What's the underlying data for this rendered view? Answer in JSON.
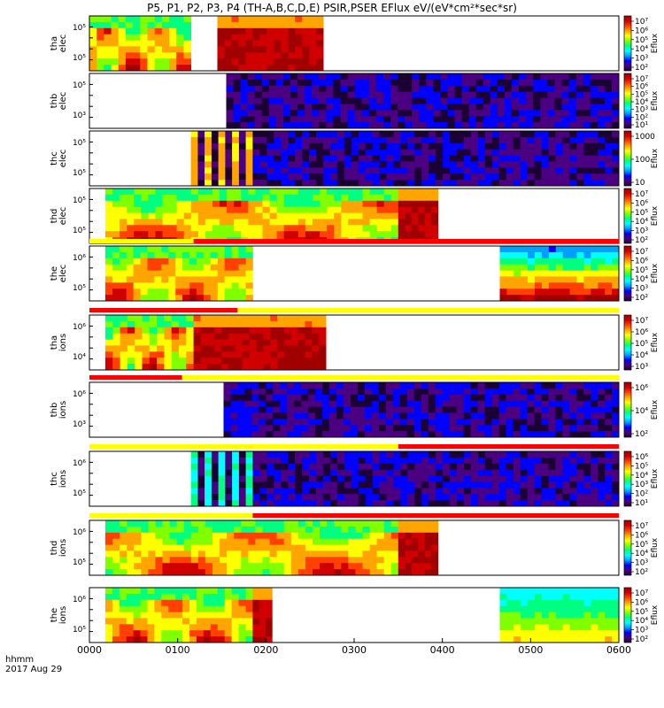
{
  "title": "P5, P1, P2, P3, P4 (TH-A,B,C,D,E) PSIR,PSER EFlux eV/(eV*cm²*sec*sr)",
  "footer": {
    "units": "hhmm",
    "date": "2017 Aug 29"
  },
  "colors": {
    "mode_red": "#ff0000",
    "mode_yellow": "#ffff00",
    "axis": "#000000"
  },
  "chart_data": {
    "type": "heatmap",
    "xlabel": "hhmm",
    "xlim": [
      "0000",
      "0600"
    ],
    "x_ticks": [
      "0000",
      "0100",
      "0200",
      "0300",
      "0400",
      "0500",
      "0600"
    ],
    "panels": [
      {
        "name": "tha elec",
        "label": [
          "tha",
          "elec"
        ],
        "yticks": [
          "10⁵",
          "10⁵"
        ],
        "cbar": [
          "10⁷",
          "10⁶",
          "10⁵",
          "10⁴",
          "10³",
          "10²"
        ],
        "cbar_title": "Eflux",
        "blocks": [
          {
            "x": [
              "0000",
              "0115"
            ],
            "level": "mid"
          },
          {
            "x": [
              "0145",
              "0265"
            ],
            "level": "high"
          }
        ]
      },
      {
        "name": "thb elec",
        "label": [
          "thb",
          "elec"
        ],
        "yticks": [
          "10⁵",
          "10³"
        ],
        "cbar": [
          "10⁷",
          "10⁶",
          "10⁵",
          "10⁴",
          "10³",
          "10²",
          "10¹"
        ],
        "cbar_title": "Eflux",
        "blocks": [
          {
            "x": [
              "0155",
              "0600"
            ],
            "level": "noise"
          }
        ]
      },
      {
        "name": "thc elec",
        "label": [
          "thc",
          "elec"
        ],
        "yticks": [
          "10⁵",
          "10⁵"
        ],
        "cbar": [
          "1000",
          "100",
          "10"
        ],
        "cbar_title": "Eflux",
        "blocks": [
          {
            "x": [
              "0115",
              "0185"
            ],
            "level": "striped"
          },
          {
            "x": [
              "0185",
              "0600"
            ],
            "level": "noise"
          }
        ]
      },
      {
        "name": "thd elec",
        "label": [
          "thd",
          "elec"
        ],
        "yticks": [
          "10⁵",
          "10⁵"
        ],
        "cbar": [
          "10⁷",
          "10⁶",
          "10⁵",
          "10⁴",
          "10³",
          "10²"
        ],
        "cbar_title": "Eflux",
        "blocks": [
          {
            "x": [
              "0018",
              "0350"
            ],
            "level": "mid"
          },
          {
            "x": [
              "0350",
              "0395"
            ],
            "level": "high"
          }
        ]
      },
      {
        "name": "the elec",
        "label": [
          "the",
          "elec"
        ],
        "yticks": [
          "10⁶",
          "10⁵"
        ],
        "cbar": [
          "10⁷",
          "10⁶",
          "10⁵",
          "10⁴",
          "10³",
          "10²"
        ],
        "cbar_title": "Eflux",
        "blocks": [
          {
            "x": [
              "0018",
              "0185"
            ],
            "level": "mid"
          },
          {
            "x": [
              "0465",
              "0600"
            ],
            "level": "gradient"
          }
        ]
      },
      {
        "name": "tha ions",
        "label": [
          "tha",
          "ions"
        ],
        "yticks": [
          "10⁶",
          "10⁴"
        ],
        "cbar": [
          "10⁷",
          "10⁶",
          "10⁵",
          "10⁴",
          "10³"
        ],
        "cbar_title": "Eflux",
        "blocks": [
          {
            "x": [
              "0018",
              "0118"
            ],
            "level": "mid"
          },
          {
            "x": [
              "0118",
              "0268"
            ],
            "level": "high"
          }
        ]
      },
      {
        "name": "thb ions",
        "label": [
          "thb",
          "ions"
        ],
        "yticks": [
          "10⁶",
          "10³"
        ],
        "cbar": [
          "10⁶",
          "10⁴",
          "10²"
        ],
        "cbar_title": "Eflux",
        "blocks": [
          {
            "x": [
              "0152",
              "0600"
            ],
            "level": "noise"
          }
        ]
      },
      {
        "name": "thc ions",
        "label": [
          "thc",
          "ions"
        ],
        "yticks": [
          "10⁶",
          "10⁵"
        ],
        "cbar": [
          "10⁶",
          "10⁵",
          "10⁴",
          "10³",
          "10²",
          "10¹"
        ],
        "cbar_title": "Eflux",
        "blocks": [
          {
            "x": [
              "0115",
              "0185"
            ],
            "level": "striped-cyan"
          },
          {
            "x": [
              "0185",
              "0600"
            ],
            "level": "noise"
          }
        ]
      },
      {
        "name": "thd ions",
        "label": [
          "thd",
          "ions"
        ],
        "yticks": [
          "10⁶",
          "10⁵"
        ],
        "cbar": [
          "10⁷",
          "10⁶",
          "10⁵",
          "10⁴",
          "10³",
          "10²"
        ],
        "cbar_title": "Eflux",
        "blocks": [
          {
            "x": [
              "0018",
              "0350"
            ],
            "level": "mid"
          },
          {
            "x": [
              "0350",
              "0395"
            ],
            "level": "high"
          }
        ]
      },
      {
        "name": "the ions",
        "label": [
          "the",
          "ions"
        ],
        "yticks": [
          "10⁶",
          "10⁵"
        ],
        "cbar": [
          "10⁷",
          "10⁶",
          "10⁵",
          "10⁴",
          "10³",
          "10²"
        ],
        "cbar_title": "Eflux",
        "blocks": [
          {
            "x": [
              "0018",
              "0185"
            ],
            "level": "mid"
          },
          {
            "x": [
              "0185",
              "0207"
            ],
            "level": "high"
          },
          {
            "x": [
              "0465",
              "0600"
            ],
            "level": "gradient-ion"
          }
        ]
      }
    ],
    "mode_bars": [
      {
        "after_panel": 4,
        "segments": [
          {
            "x": [
              "0000",
              "0118"
            ],
            "color": "yellow"
          },
          {
            "x": [
              "0118",
              "0600"
            ],
            "color": "red"
          }
        ]
      },
      {
        "after_panel": 5,
        "segments": [
          {
            "x": [
              "0000",
              "0168"
            ],
            "color": "red"
          },
          {
            "x": [
              "0168",
              "0600"
            ],
            "color": "yellow"
          }
        ]
      },
      {
        "after_panel": 6,
        "segments": [
          {
            "x": [
              "0000",
              "0105"
            ],
            "color": "red"
          },
          {
            "x": [
              "0105",
              "0600"
            ],
            "color": "yellow"
          }
        ]
      },
      {
        "after_panel": 7,
        "segments": [
          {
            "x": [
              "0000",
              "0350"
            ],
            "color": "yellow"
          },
          {
            "x": [
              "0350",
              "0600"
            ],
            "color": "red"
          }
        ]
      },
      {
        "after_panel": 8,
        "segments": [
          {
            "x": [
              "0000",
              "0185"
            ],
            "color": "yellow"
          },
          {
            "x": [
              "0185",
              "0600"
            ],
            "color": "red"
          }
        ]
      }
    ]
  }
}
